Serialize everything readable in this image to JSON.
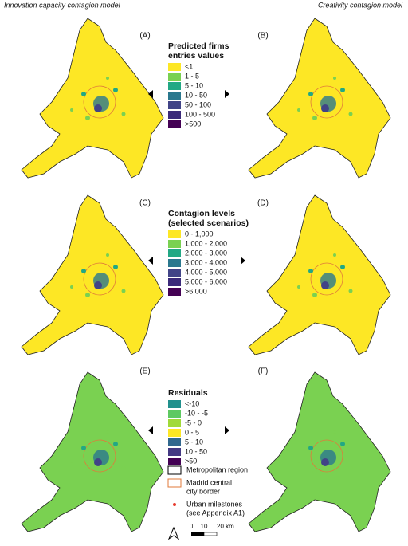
{
  "columns": [
    "Innovation capacity contagion model",
    "Creativity contagion model"
  ],
  "panels": [
    "(A)",
    "(B)",
    "(C)",
    "(D)",
    "(E)",
    "(F)"
  ],
  "legends": [
    {
      "title": [
        "Predicted firms",
        "entries values"
      ],
      "items": [
        {
          "label": "<1",
          "color": "#fde725"
        },
        {
          "label": "1 - 5",
          "color": "#7ad151"
        },
        {
          "label": "5 - 10",
          "color": "#22a884"
        },
        {
          "label": "10 - 50",
          "color": "#2a788e"
        },
        {
          "label": "50 - 100",
          "color": "#414487"
        },
        {
          "label": "100 - 500",
          "color": "#3b2a7a"
        },
        {
          "label": ">500",
          "color": "#440154"
        }
      ]
    },
    {
      "title": [
        "Contagion levels",
        "(selected scenarios)"
      ],
      "items": [
        {
          "label": "0 - 1,000",
          "color": "#fde725"
        },
        {
          "label": "1,000 - 2,000",
          "color": "#7ad151"
        },
        {
          "label": "2,000 - 3,000",
          "color": "#22a884"
        },
        {
          "label": "3,000 - 4,000",
          "color": "#2a788e"
        },
        {
          "label": "4,000 - 5,000",
          "color": "#414487"
        },
        {
          "label": "5,000 - 6,000",
          "color": "#3b2a7a"
        },
        {
          "label": ">6,000",
          "color": "#440154"
        }
      ]
    },
    {
      "title": [
        "Residuals"
      ],
      "items": [
        {
          "label": "<-10",
          "color": "#21908d"
        },
        {
          "label": "-10 - -5",
          "color": "#5ec962"
        },
        {
          "label": "-5 - 0",
          "color": "#a0da39"
        },
        {
          "label": "0 - 5",
          "color": "#fde725"
        },
        {
          "label": "5 - 10",
          "color": "#31688e"
        },
        {
          "label": "10 - 50",
          "color": "#443983"
        },
        {
          "label": ">50",
          "color": "#440154"
        }
      ]
    }
  ],
  "map_legend": [
    {
      "label": [
        "Metropolitan region"
      ]
    },
    {
      "label": [
        "Madrid central",
        "city border"
      ]
    },
    {
      "label": [
        "Urban milestones",
        "(see Appendix A1)"
      ]
    }
  ],
  "scale": [
    "0",
    "10",
    "20 km"
  ]
}
